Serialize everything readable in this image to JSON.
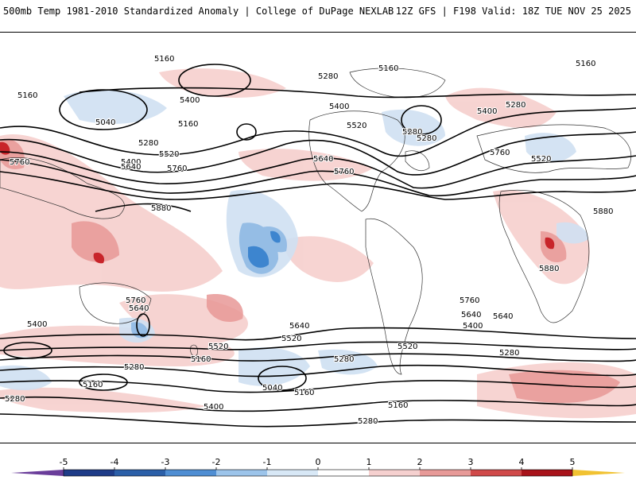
{
  "header": {
    "title": "500mb Temp 1981-2010 Standardized Anomaly | College of DuPage NEXLAB",
    "run_info": "12Z GFS | F198 Valid: 18Z TUE NOV 25 2025"
  },
  "colorbar": {
    "ticks": [
      "-5",
      "-4",
      "-3",
      "-2",
      "-1",
      "0",
      "1",
      "2",
      "3",
      "4",
      "5"
    ],
    "colors": [
      "#6a3d9a",
      "#1f3c88",
      "#2b5fa8",
      "#4f8ed3",
      "#9cc4ea",
      "#d8e8f6",
      "#ffffff",
      "#f5d0cf",
      "#e79a98",
      "#d04a4a",
      "#a8131a",
      "#7a0a10",
      "#f1c232"
    ]
  },
  "contour_labels": [
    "5160",
    "5160",
    "5160",
    "5160",
    "5160",
    "5160",
    "5160",
    "5280",
    "5280",
    "5280",
    "5280",
    "5280",
    "5280",
    "5280",
    "5280",
    "5400",
    "5400",
    "5400",
    "5400",
    "5400",
    "5400",
    "5400",
    "5520",
    "5520",
    "5520",
    "5520",
    "5520",
    "5520",
    "5640",
    "5640",
    "5640",
    "5640",
    "5640",
    "5640",
    "5760",
    "5760",
    "5760",
    "5760",
    "5760",
    "5760",
    "5880",
    "5880",
    "5880",
    "5040",
    "5040",
    "5160",
    "5160",
    "5280",
    "5280"
  ],
  "colors": {
    "warm_light": "#f6cfcd",
    "warm_mid": "#e89896",
    "warm_strong": "#c8242a",
    "cool_light": "#cfe0f2",
    "cool_mid": "#8fb9e4",
    "cool_strong": "#3d85cf",
    "land_outline": "#333333",
    "contour": "#000000"
  }
}
